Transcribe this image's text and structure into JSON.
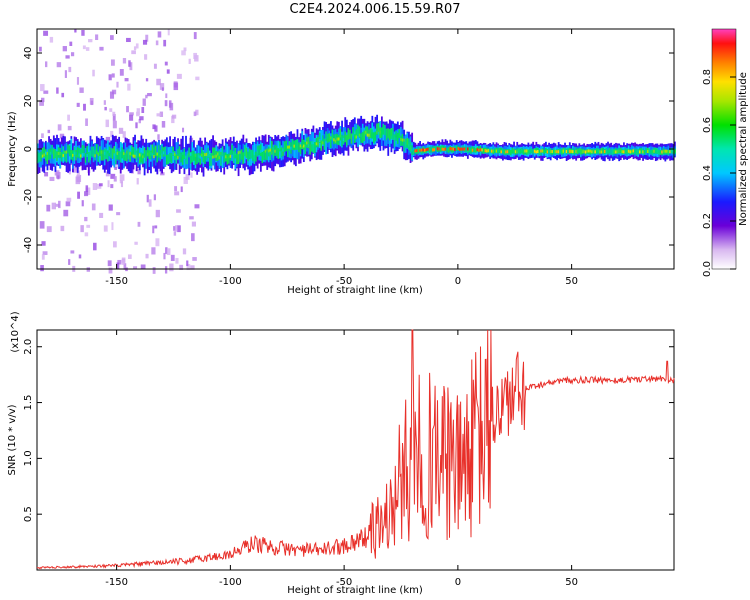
{
  "title": "C2E4.2024.006.15.59.R07",
  "colors": {
    "snr_line": "#e8302a",
    "axes": "#000000",
    "background": "#ffffff"
  },
  "chart_data": [
    {
      "type": "heatmap",
      "name": "spectrogram",
      "xlabel": "Height of straight line (km)",
      "ylabel": "Frequency (Hz)",
      "xlim": [
        -185,
        95
      ],
      "ylim": [
        -50,
        50
      ],
      "xticks": [
        -150,
        -100,
        -50,
        0,
        50
      ],
      "yticks": [
        -40,
        -20,
        0,
        20,
        40
      ],
      "colorbar": {
        "label": "Normalized spectral amplitude",
        "range": [
          0,
          1
        ],
        "ticks": [
          0.0,
          0.2,
          0.4,
          0.6,
          0.8
        ],
        "colormap": "rainbow (white-purple-blue-cyan-green-yellow-red)"
      },
      "trace_center_hz": [
        {
          "x": -185,
          "y": -2
        },
        {
          "x": -150,
          "y": -2
        },
        {
          "x": -110,
          "y": -3
        },
        {
          "x": -90,
          "y": -2
        },
        {
          "x": -70,
          "y": 1
        },
        {
          "x": -55,
          "y": 4
        },
        {
          "x": -45,
          "y": 6
        },
        {
          "x": -35,
          "y": 7
        },
        {
          "x": -25,
          "y": 4
        },
        {
          "x": -20,
          "y": -1
        },
        {
          "x": -10,
          "y": 0
        },
        {
          "x": 0,
          "y": 0
        },
        {
          "x": 20,
          "y": -1
        },
        {
          "x": 60,
          "y": -1
        },
        {
          "x": 95,
          "y": -1
        }
      ]
    },
    {
      "type": "line",
      "name": "snr",
      "xlabel": "Height of straight line (km)",
      "ylabel": "SNR (10 * v/v)",
      "multiplier_label": "(x10^4)",
      "xlim": [
        -185,
        95
      ],
      "ylim": [
        0,
        2.15
      ],
      "xticks": [
        -150,
        -100,
        -50,
        0,
        50
      ],
      "yticks": [
        0.5,
        1.0,
        1.5,
        2.0
      ],
      "envelope_points": [
        {
          "x": -185,
          "y": 0.02
        },
        {
          "x": -150,
          "y": 0.04
        },
        {
          "x": -120,
          "y": 0.08
        },
        {
          "x": -100,
          "y": 0.14
        },
        {
          "x": -90,
          "y": 0.24
        },
        {
          "x": -80,
          "y": 0.2
        },
        {
          "x": -70,
          "y": 0.18
        },
        {
          "x": -60,
          "y": 0.18
        },
        {
          "x": -50,
          "y": 0.22
        },
        {
          "x": -40,
          "y": 0.3
        },
        {
          "x": -30,
          "y": 0.5
        },
        {
          "x": -25,
          "y": 0.8
        },
        {
          "x": -20,
          "y": 1.0
        },
        {
          "x": -15,
          "y": 1.05
        },
        {
          "x": -10,
          "y": 1.0
        },
        {
          "x": -5,
          "y": 0.95
        },
        {
          "x": 0,
          "y": 0.9
        },
        {
          "x": 5,
          "y": 1.05
        },
        {
          "x": 10,
          "y": 1.2
        },
        {
          "x": 15,
          "y": 1.35
        },
        {
          "x": 20,
          "y": 1.5
        },
        {
          "x": 30,
          "y": 1.62
        },
        {
          "x": 40,
          "y": 1.68
        },
        {
          "x": 50,
          "y": 1.7
        },
        {
          "x": 70,
          "y": 1.7
        },
        {
          "x": 90,
          "y": 1.72
        },
        {
          "x": 95,
          "y": 1.7
        }
      ],
      "peak_points": [
        {
          "x": -20,
          "y": 2.15
        },
        {
          "x": -17,
          "y": 1.75
        },
        {
          "x": -10,
          "y": 1.65
        },
        {
          "x": -4,
          "y": 1.4
        },
        {
          "x": 92,
          "y": 1.87
        }
      ]
    }
  ]
}
